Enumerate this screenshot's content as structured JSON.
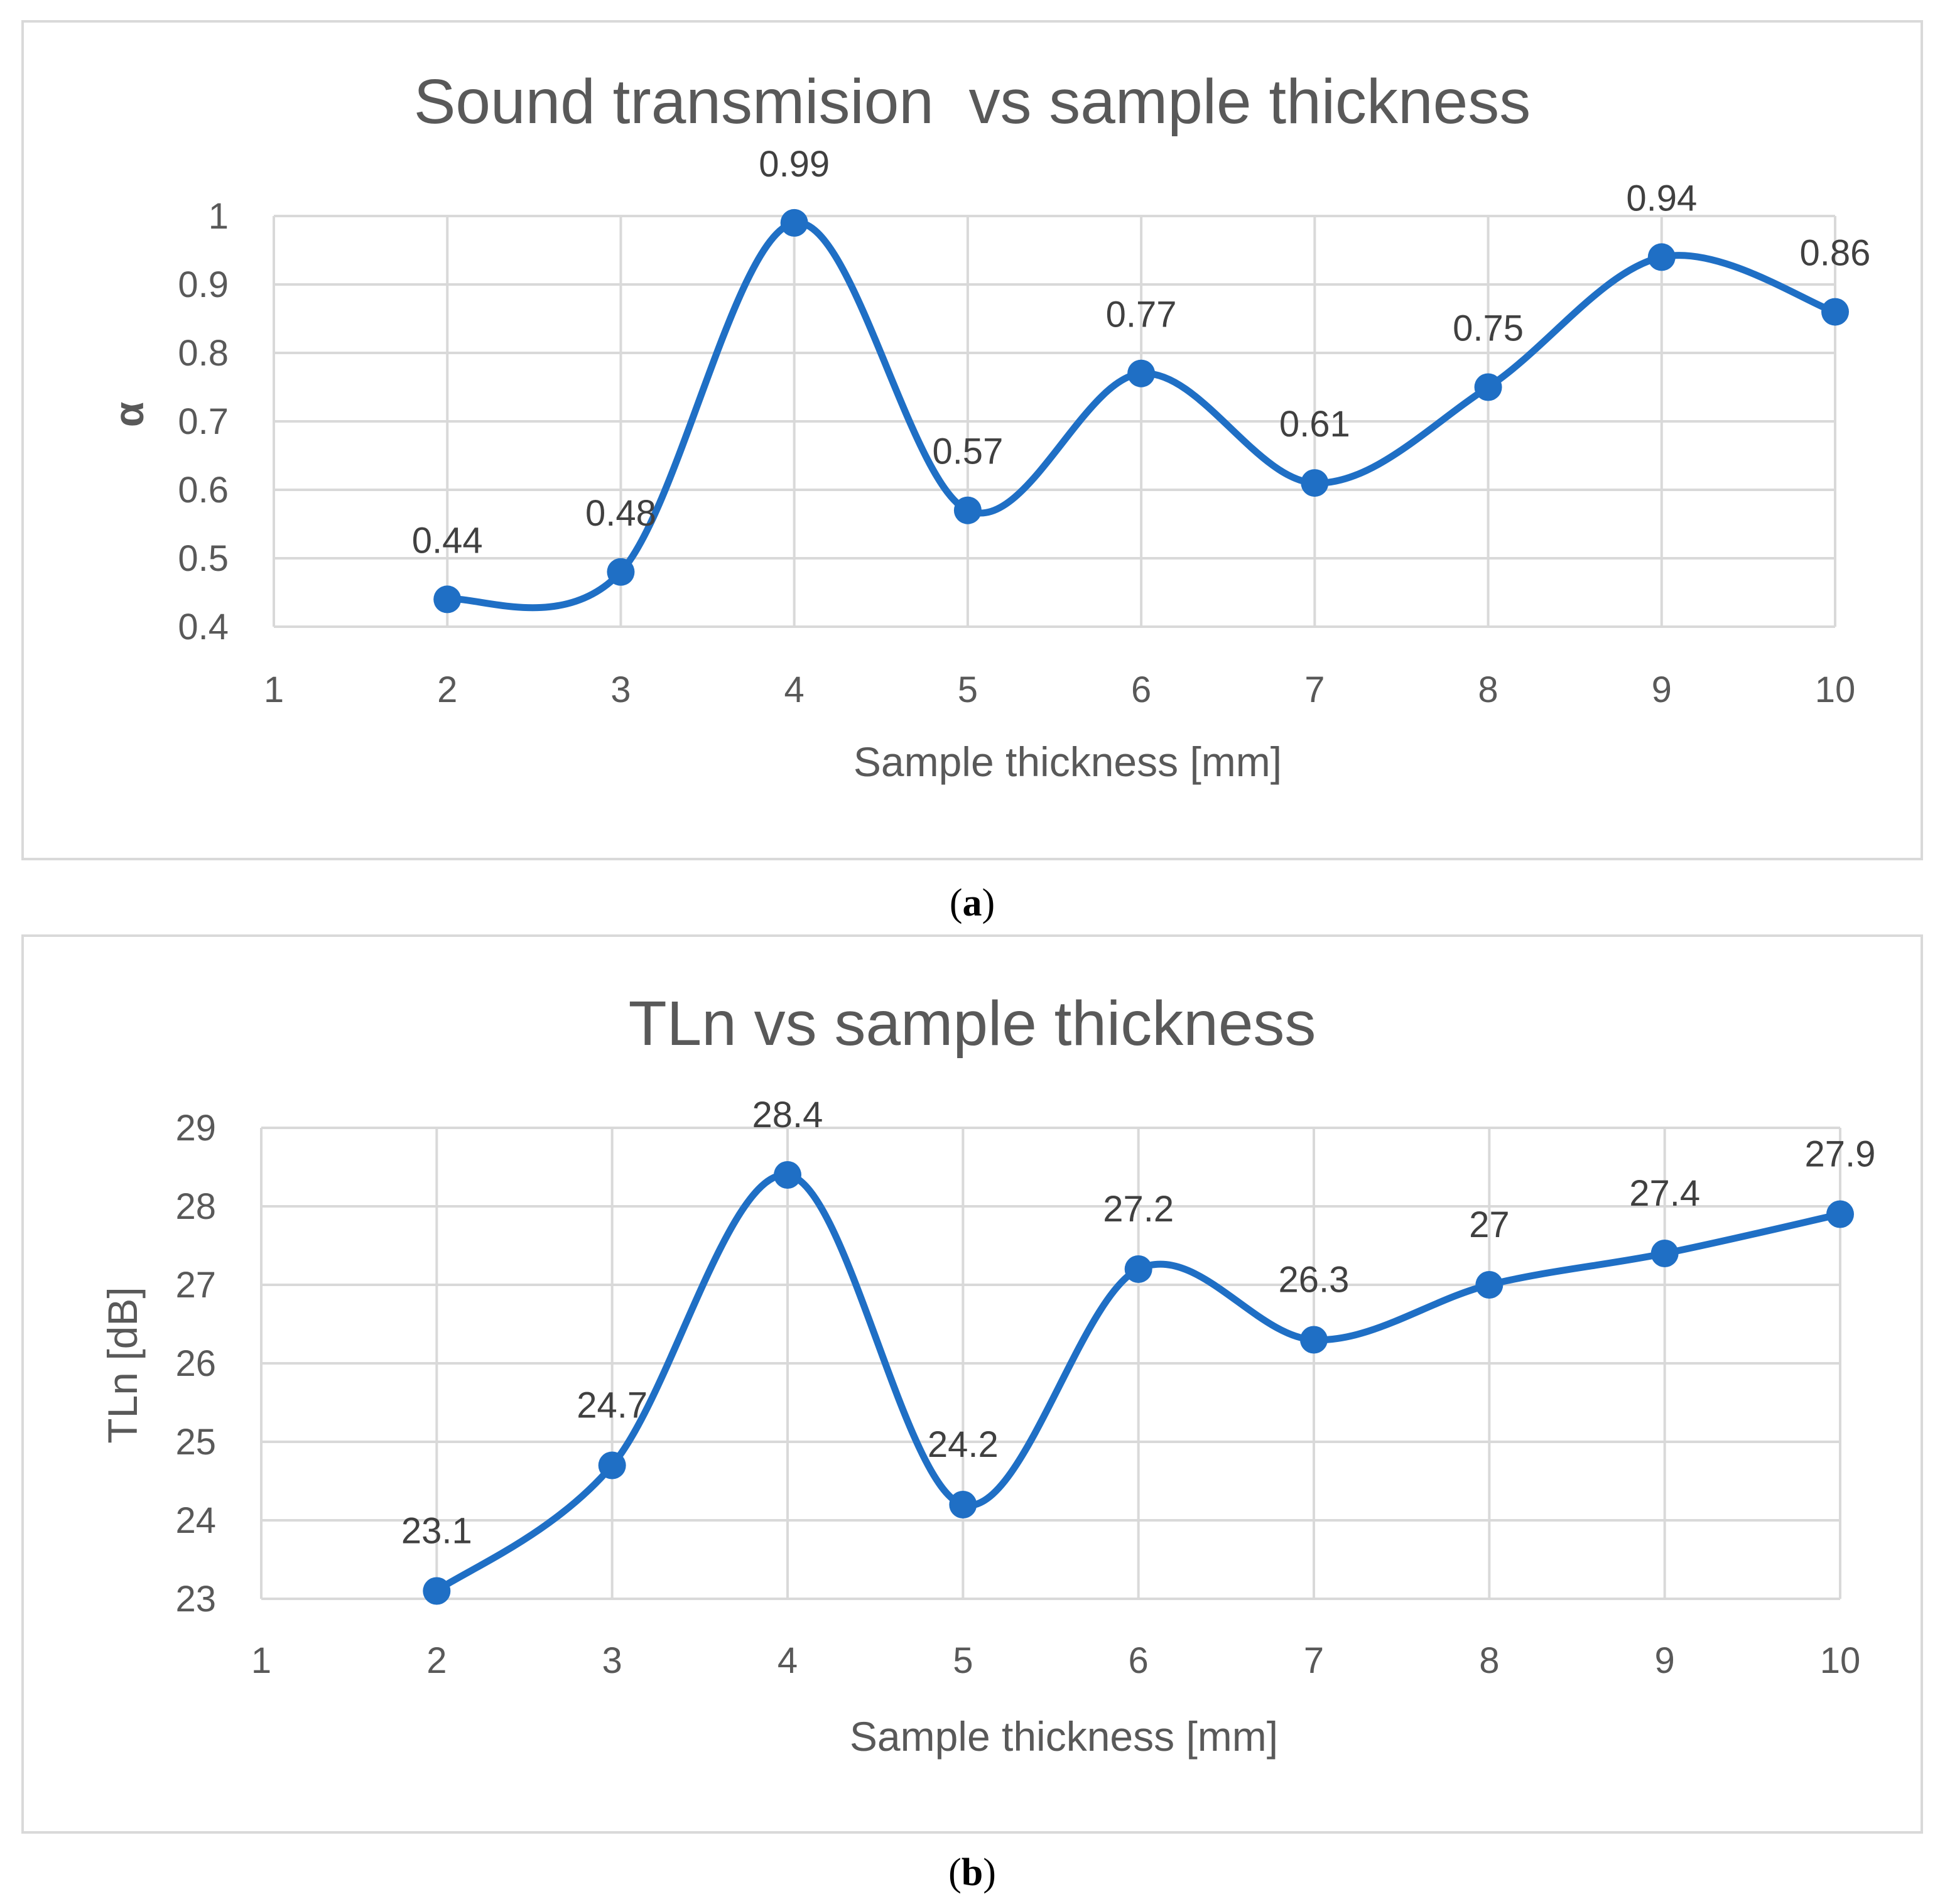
{
  "chart_data": [
    {
      "type": "line",
      "title": "Sound transmision  vs sample thickness",
      "xlabel": "Sample thickness [mm]",
      "ylabel": "α",
      "caption_letter": "a",
      "x_ticks": [
        1,
        2,
        3,
        4,
        5,
        6,
        7,
        8,
        9,
        10
      ],
      "y_ticks": [
        "0.4",
        "0.5",
        "0.6",
        "0.7",
        "0.8",
        "0.9",
        "1"
      ],
      "xlim": [
        1,
        10
      ],
      "ylim": [
        0.4,
        1
      ],
      "grid": true,
      "smooth": true,
      "series": [
        {
          "name": "α",
          "x": [
            2,
            3,
            4,
            5,
            6,
            7,
            8,
            9,
            10
          ],
          "values": [
            0.44,
            0.48,
            0.99,
            0.57,
            0.77,
            0.61,
            0.75,
            0.94,
            0.86
          ],
          "labels": [
            "0.44",
            "0.48",
            "0.99",
            "0.57",
            "0.77",
            "0.61",
            "0.75",
            "0.94",
            "0.86"
          ]
        }
      ]
    },
    {
      "type": "line",
      "title": "TLn vs sample thickness",
      "xlabel": "Sample thickness [mm]",
      "ylabel": "TLn [dB]",
      "caption_letter": "b",
      "x_ticks": [
        1,
        2,
        3,
        4,
        5,
        6,
        7,
        8,
        9,
        10
      ],
      "y_ticks": [
        "23",
        "24",
        "25",
        "26",
        "27",
        "28",
        "29"
      ],
      "xlim": [
        1,
        10
      ],
      "ylim": [
        23,
        29
      ],
      "grid": true,
      "smooth": true,
      "series": [
        {
          "name": "TLn",
          "x": [
            2,
            3,
            4,
            5,
            6,
            7,
            8,
            9,
            10
          ],
          "values": [
            23.1,
            24.7,
            28.4,
            24.2,
            27.2,
            26.3,
            27,
            27.4,
            27.9
          ],
          "labels": [
            "23.1",
            "24.7",
            "28.4",
            "24.2",
            "27.2",
            "26.3",
            "27",
            "27.4",
            "27.9"
          ]
        }
      ]
    }
  ]
}
